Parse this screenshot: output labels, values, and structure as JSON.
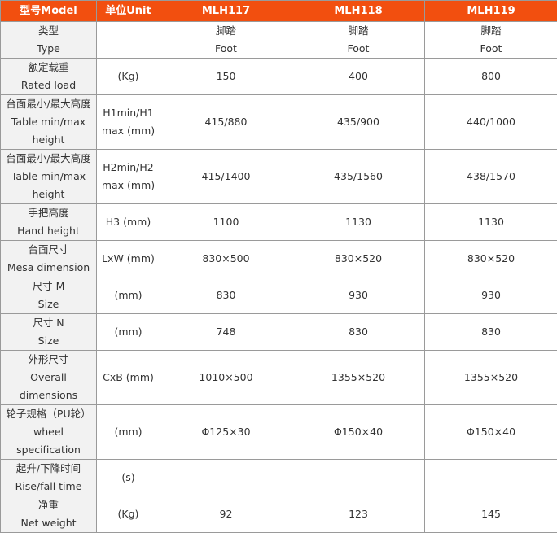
{
  "header": {
    "model": "型号Model",
    "unit": "单位Unit",
    "models": [
      "MLH117",
      "MLH118",
      "MLH119"
    ]
  },
  "rows": [
    {
      "label": [
        "类型",
        "Type"
      ],
      "unit": [],
      "values": [
        [
          "脚踏",
          "Foot"
        ],
        [
          "脚踏",
          "Foot"
        ],
        [
          "脚踏",
          "Foot"
        ]
      ]
    },
    {
      "label": [
        "额定载重",
        "Rated load"
      ],
      "unit": [
        "(Kg)"
      ],
      "values": [
        [
          "150"
        ],
        [
          "400"
        ],
        [
          "800"
        ]
      ]
    },
    {
      "label": [
        "台面最小/最大高度",
        "Table min/max",
        "height"
      ],
      "unit": [
        "H1min/H1",
        "max (mm)"
      ],
      "values": [
        [
          "415/880"
        ],
        [
          "435/900"
        ],
        [
          "440/1000"
        ]
      ]
    },
    {
      "label": [
        "台面最小/最大高度",
        "Table min/max",
        "height"
      ],
      "unit": [
        "H2min/H2",
        "max (mm)"
      ],
      "values": [
        [
          "415/1400"
        ],
        [
          "435/1560"
        ],
        [
          "438/1570"
        ]
      ]
    },
    {
      "label": [
        "手把高度",
        "Hand height"
      ],
      "unit": [
        "H3 (mm)"
      ],
      "values": [
        [
          "1100"
        ],
        [
          "1130"
        ],
        [
          "1130"
        ]
      ]
    },
    {
      "label": [
        "台面尺寸",
        "Mesa dimension"
      ],
      "unit": [
        "LxW (mm)"
      ],
      "values": [
        [
          "830×500"
        ],
        [
          "830×520"
        ],
        [
          "830×520"
        ]
      ]
    },
    {
      "label": [
        "尺寸 M",
        "Size"
      ],
      "unit": [
        "(mm)"
      ],
      "values": [
        [
          "830"
        ],
        [
          "930"
        ],
        [
          "930"
        ]
      ]
    },
    {
      "label": [
        "尺寸 N",
        "Size"
      ],
      "unit": [
        "(mm)"
      ],
      "values": [
        [
          "748"
        ],
        [
          "830"
        ],
        [
          "830"
        ]
      ]
    },
    {
      "label": [
        "外形尺寸",
        "Overall",
        "dimensions"
      ],
      "unit": [
        "CxB (mm)"
      ],
      "values": [
        [
          "1010×500"
        ],
        [
          "1355×520"
        ],
        [
          "1355×520"
        ]
      ]
    },
    {
      "label": [
        "轮子规格（PU轮）",
        "wheel",
        "specification"
      ],
      "unit": [
        "(mm)"
      ],
      "values": [
        [
          "Φ125×30"
        ],
        [
          "Φ150×40"
        ],
        [
          "Φ150×40"
        ]
      ]
    },
    {
      "label": [
        "起升/下降时间",
        "Rise/fall time"
      ],
      "unit": [
        "(s)"
      ],
      "values": [
        [
          "—"
        ],
        [
          "—"
        ],
        [
          "—"
        ]
      ]
    },
    {
      "label": [
        "净重",
        "Net weight"
      ],
      "unit": [
        "(Kg)"
      ],
      "values": [
        [
          "92"
        ],
        [
          "123"
        ],
        [
          "145"
        ]
      ]
    }
  ],
  "colors": {
    "header_bg": "#f24f0f",
    "label_bg": "#f2f2f2",
    "border": "#9a9a9a"
  }
}
